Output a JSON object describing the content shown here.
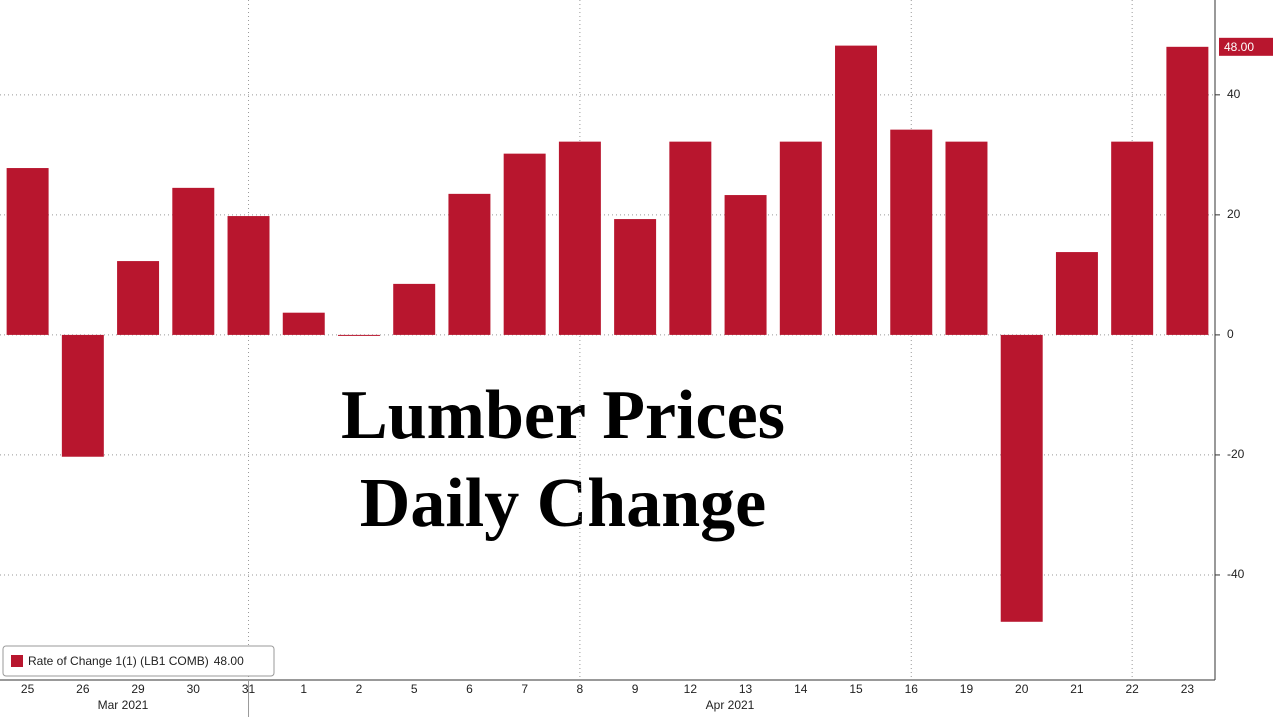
{
  "chart_data": {
    "type": "bar",
    "annotations": [
      "Lumber Prices",
      "Daily Change"
    ],
    "categories": [
      "25",
      "26",
      "29",
      "30",
      "31",
      "1",
      "2",
      "5",
      "6",
      "7",
      "8",
      "9",
      "12",
      "13",
      "14",
      "15",
      "16",
      "19",
      "20",
      "21",
      "22",
      "23"
    ],
    "months": [
      "Mar 2021",
      "Apr 2021"
    ],
    "series": [
      {
        "name": "Rate of Change 1(1) (LB1 COMB)",
        "color": "#b8162e",
        "values": [
          27.8,
          -20.3,
          12.3,
          24.5,
          19.8,
          3.7,
          0,
          8.5,
          23.5,
          30.2,
          32.2,
          19.3,
          32.2,
          23.3,
          32.2,
          48.2,
          34.2,
          32.2,
          -47.8,
          13.8,
          32.2,
          48.0
        ],
        "value_labels": [
          null,
          null,
          null,
          null,
          null,
          null,
          null,
          null,
          null,
          null,
          null,
          null,
          null,
          null,
          null,
          null,
          null,
          null,
          null,
          null,
          null,
          "48.00"
        ]
      }
    ],
    "ylim": [
      -57.5,
      55.8
    ],
    "yticks": [
      -40,
      -20,
      0,
      20,
      40
    ],
    "grid": true,
    "legend": "bottom-left"
  }
}
